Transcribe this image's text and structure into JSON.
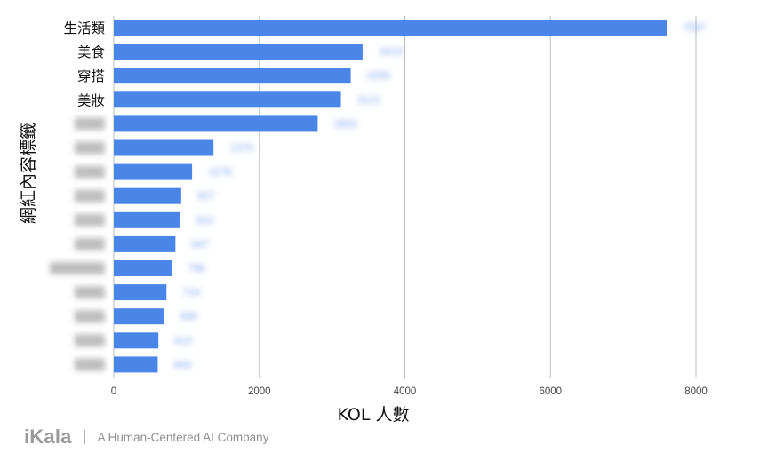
{
  "chart_data": {
    "type": "bar",
    "orientation": "horizontal",
    "xlabel": "KOL 人數",
    "ylabel": "網紅內容標籤",
    "xlim": [
      0,
      8000
    ],
    "xticks": [
      "0",
      "2000",
      "4000",
      "6000",
      "8000"
    ],
    "grid": true,
    "bar_color": "#4a86e8",
    "categories": [
      "生活類",
      "美食",
      "穿搭",
      "美妝",
      "",
      "",
      "",
      "",
      "",
      "",
      "",
      "",
      "",
      "",
      ""
    ],
    "values": [
      7597,
      3419,
      3256,
      3121,
      2802,
      1370,
      1076,
      927,
      910,
      847,
      796,
      724,
      690,
      613,
      604
    ],
    "data_labels": [
      "7597",
      "3419",
      "3256",
      "3121",
      "2802",
      "1370",
      "1076",
      "927",
      "910",
      "847",
      "796",
      "724",
      "690",
      "613",
      "604"
    ],
    "blurred_from_index": 4,
    "labels_blurred": true
  },
  "footer": {
    "logo": "iKala",
    "tagline": "A Human-Centered AI Company"
  }
}
